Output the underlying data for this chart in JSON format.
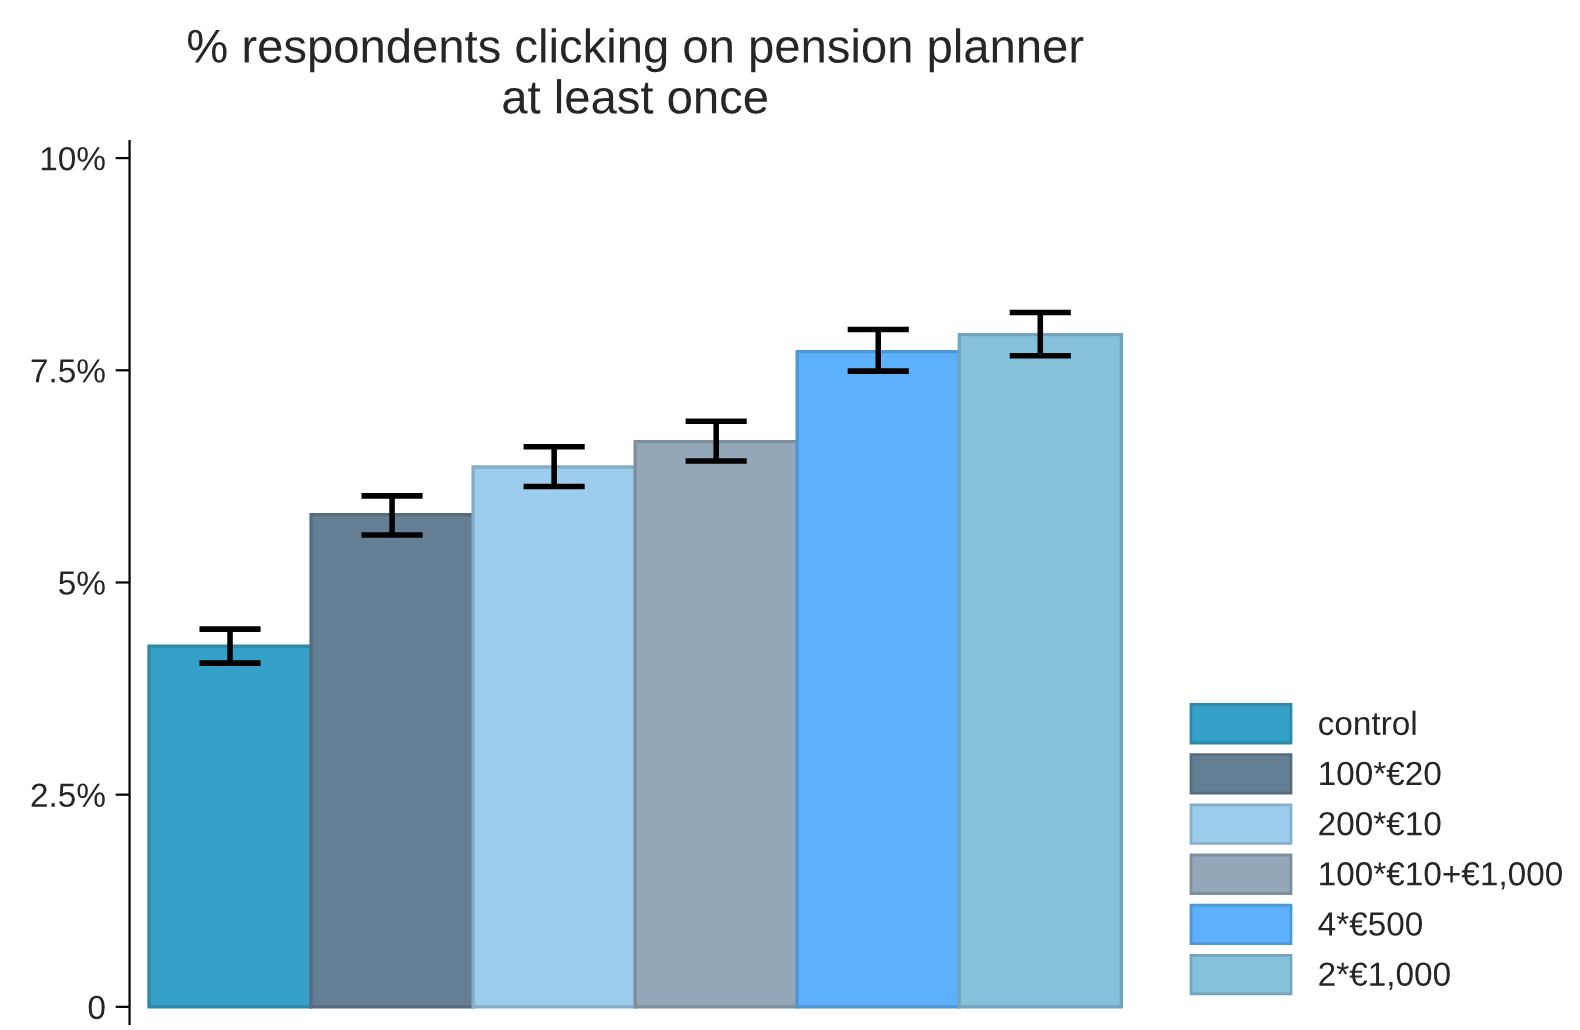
{
  "chart_data": {
    "type": "bar",
    "title": "% respondents clicking on pension planner\nat least once",
    "categories": [
      null
    ],
    "series": [
      {
        "name": "control",
        "color": "#35a0c8",
        "values": [
          4.25
        ],
        "errors": [
          [
            4.05,
            4.45
          ]
        ]
      },
      {
        "name": "100*€20",
        "color": "#647f94",
        "values": [
          5.8
        ],
        "errors": [
          [
            5.56,
            6.02
          ]
        ]
      },
      {
        "name": "200*€10",
        "color": "#9ccdec",
        "values": [
          6.36
        ],
        "errors": [
          [
            6.13,
            6.6
          ]
        ]
      },
      {
        "name": "100*€10+€1,000",
        "color": "#94a7b8",
        "values": [
          6.66
        ],
        "errors": [
          [
            6.43,
            6.9
          ]
        ]
      },
      {
        "name": "4*€500",
        "color": "#5cb0fc",
        "values": [
          7.72
        ],
        "errors": [
          [
            7.49,
            7.98
          ]
        ]
      },
      {
        "name": "2*€1,000",
        "color": "#86c1dc",
        "values": [
          7.92
        ],
        "errors": [
          [
            7.67,
            8.18
          ]
        ]
      }
    ],
    "ylim": [
      -0.2,
      10.2
    ],
    "yticks": [
      {
        "value": 0,
        "label": "0"
      },
      {
        "value": 2.5,
        "label": "2.5%"
      },
      {
        "value": 5,
        "label": "5%"
      },
      {
        "value": 7.5,
        "label": "7.5%"
      },
      {
        "value": 10,
        "label": "10%"
      }
    ],
    "grid": false,
    "legend": "bottom right"
  }
}
